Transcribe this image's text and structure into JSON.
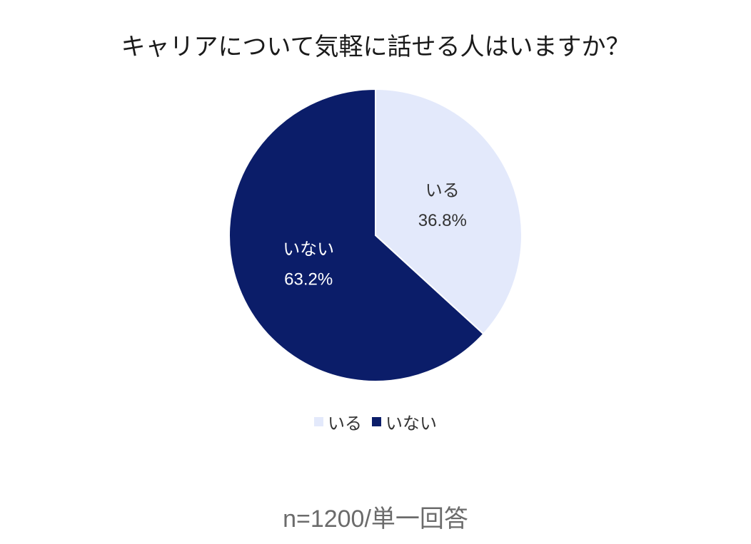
{
  "chart_data": {
    "type": "pie",
    "title": "キャリアについて気軽に話せる人はいますか？",
    "slices": [
      {
        "label": "いる",
        "value": 36.8,
        "value_label": "36.8%",
        "color": "#e3e9fb",
        "label_color": "#333333"
      },
      {
        "label": "いない",
        "value": 63.2,
        "value_label": "63.2%",
        "color": "#0b1d69",
        "label_color": "#ffffff"
      }
    ],
    "start_angle": "top, clockwise",
    "legend": {
      "placement": "bottom",
      "entries": [
        "いる",
        "いない"
      ]
    },
    "note": "n=1200/単一回答"
  }
}
